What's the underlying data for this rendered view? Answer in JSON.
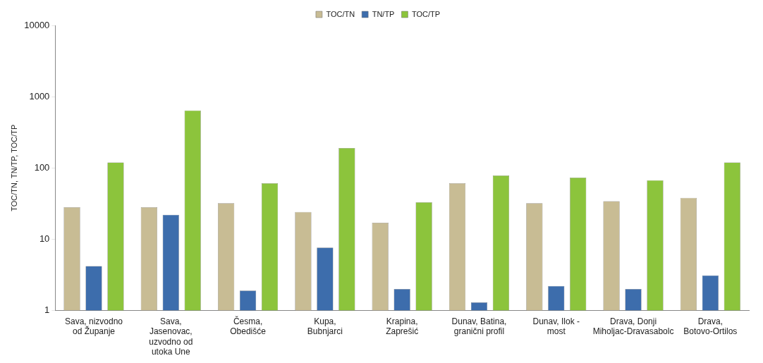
{
  "chart_data": {
    "type": "bar",
    "ylabel": "TOC/TN, TN/TP, TOC/TP",
    "categories": [
      "Sava, nizvodno od Županje",
      "Sava, Jasenovac, uzvodno od utoka Une",
      "Česma, Obedišće",
      "Kupa, Bubnjarci",
      "Krapina, Zaprešić",
      "Dunav, Batina, granični profil",
      "Dunav, Ilok - most",
      "Drava, Donji Miholjac-Dravasabolc",
      "Drava, Botovo-Ortilos"
    ],
    "series": [
      {
        "name": "TOC/TN",
        "color": "#c8bc94",
        "values": [
          28,
          28,
          32,
          24,
          17,
          61,
          32,
          34,
          38
        ]
      },
      {
        "name": "TN/TP",
        "color": "#3d6dac",
        "values": [
          4.2,
          22,
          1.9,
          7.6,
          2.0,
          1.3,
          2.2,
          2.0,
          3.1
        ]
      },
      {
        "name": "TOC/TP",
        "color": "#8cc43c",
        "values": [
          119,
          640,
          61,
          190,
          33,
          78,
          73,
          67,
          119
        ]
      }
    ],
    "log": "y",
    "ylim": [
      1,
      10000
    ],
    "yticks": [
      1,
      10,
      100,
      1000,
      10000
    ],
    "grid": false,
    "legend": "top"
  }
}
